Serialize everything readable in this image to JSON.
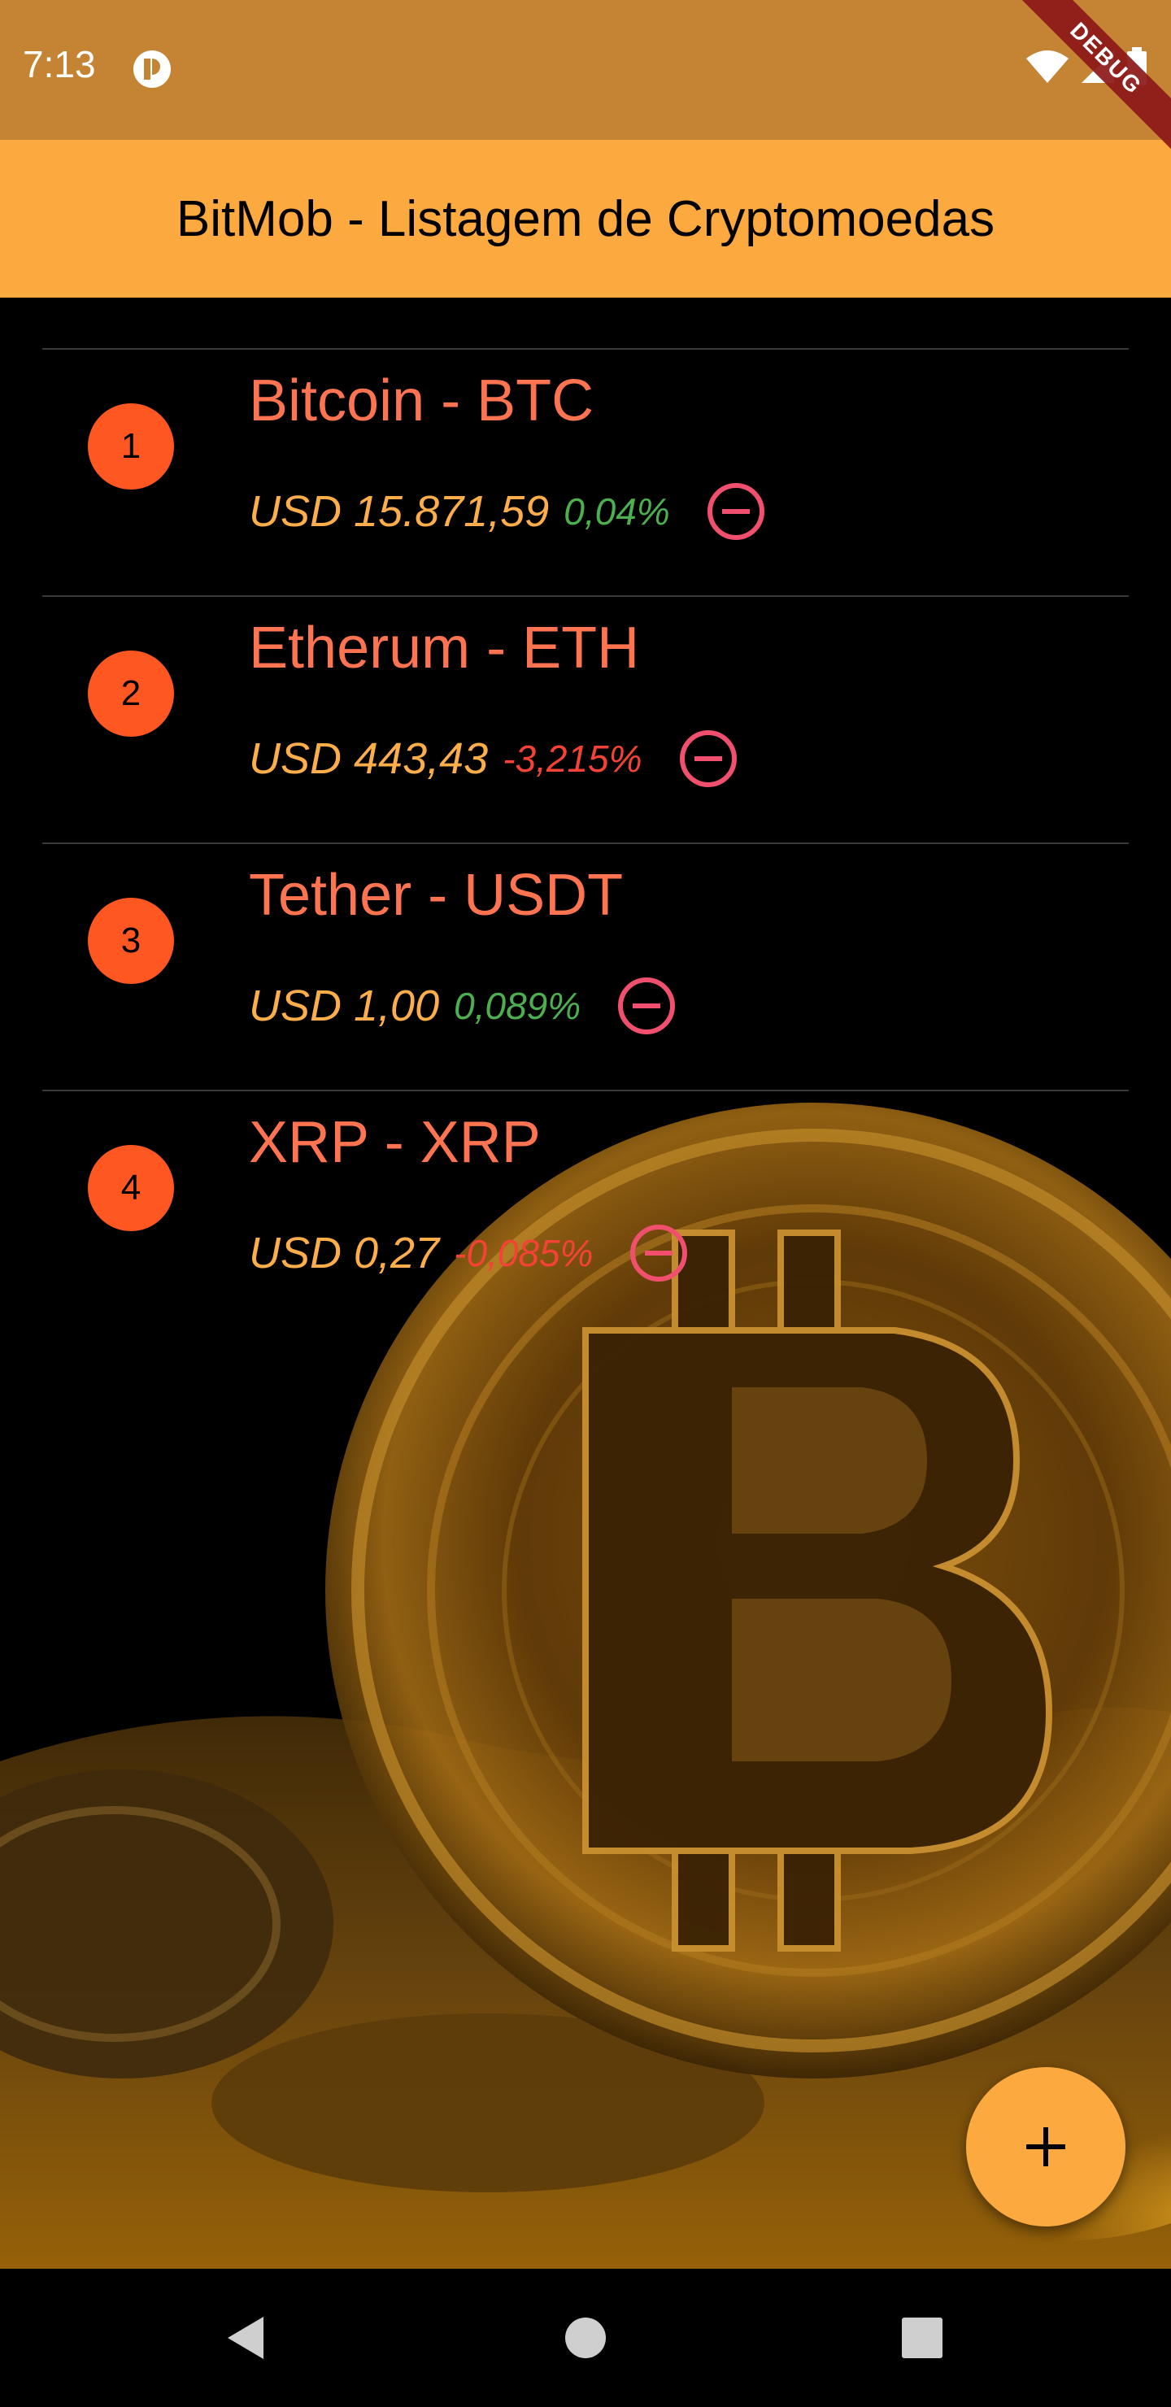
{
  "status_bar": {
    "time": "7:13",
    "debug_label": "DEBUG",
    "icons": [
      "app-notification-icon",
      "wifi-icon",
      "signal-icon",
      "battery-icon"
    ]
  },
  "app_bar": {
    "title": "BitMob - Listagem de Cryptomoedas"
  },
  "cryptos": [
    {
      "rank": "1",
      "name": "Bitcoin - BTC",
      "price": "USD 15.871,59",
      "change": "0,04%",
      "trend": "up"
    },
    {
      "rank": "2",
      "name": "Etherum - ETH",
      "price": "USD 443,43",
      "change": "-3,215%",
      "trend": "down"
    },
    {
      "rank": "3",
      "name": "Tether - USDT",
      "price": "USD 1,00",
      "change": "0,089%",
      "trend": "up"
    },
    {
      "rank": "4",
      "name": "XRP - XRP",
      "price": "USD 0,27",
      "change": "-0,085%",
      "trend": "down"
    }
  ],
  "fab": {
    "icon": "plus-icon"
  },
  "nav_bar": {
    "icons": [
      "back-icon",
      "home-icon",
      "recents-icon"
    ]
  },
  "colors": {
    "status_bar": "#c48434",
    "app_bar": "#fca93f",
    "avatar": "#fe5722",
    "coin_name": "#fe7350",
    "price": "#fdae4b",
    "change_up": "#4caf50",
    "change_down": "#f44336",
    "remove_icon": "#f0506e"
  }
}
